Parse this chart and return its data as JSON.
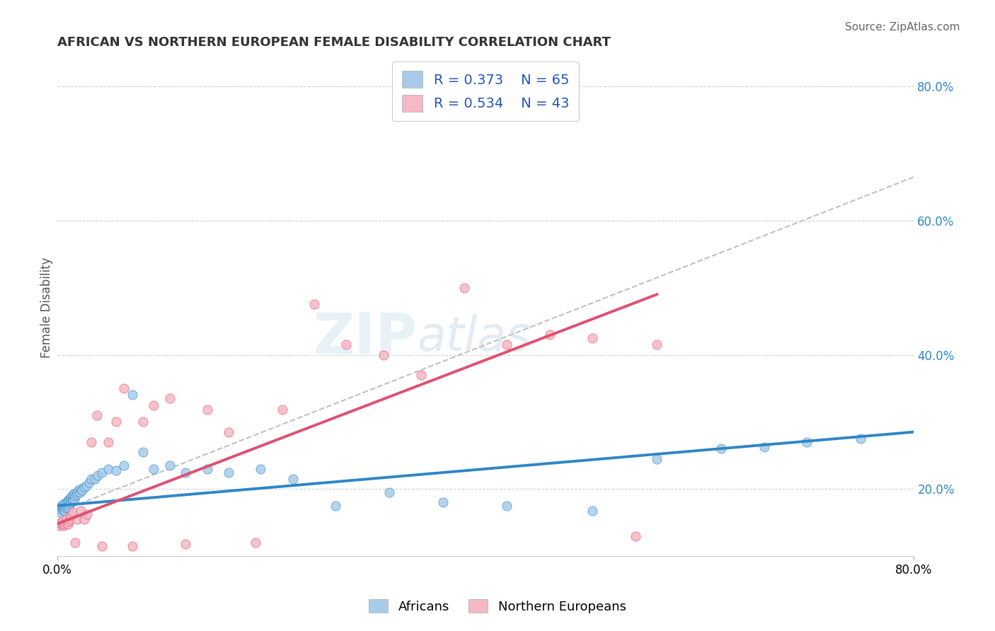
{
  "title": "AFRICAN VS NORTHERN EUROPEAN FEMALE DISABILITY CORRELATION CHART",
  "source": "Source: ZipAtlas.com",
  "ylabel": "Female Disability",
  "legend_labels": [
    "Africans",
    "Northern Europeans"
  ],
  "r_values": [
    0.373,
    0.534
  ],
  "n_values": [
    65,
    43
  ],
  "watermark_part1": "ZIP",
  "watermark_part2": "atlas",
  "xlim": [
    0.0,
    0.8
  ],
  "ylim": [
    0.1,
    0.84
  ],
  "yticks": [
    0.2,
    0.4,
    0.6,
    0.8
  ],
  "ytick_labels": [
    "20.0%",
    "40.0%",
    "60.0%",
    "80.0%"
  ],
  "xtick_labels": [
    "0.0%",
    "80.0%"
  ],
  "african_x": [
    0.002,
    0.003,
    0.004,
    0.004,
    0.005,
    0.005,
    0.006,
    0.006,
    0.007,
    0.007,
    0.008,
    0.008,
    0.009,
    0.009,
    0.01,
    0.01,
    0.01,
    0.011,
    0.011,
    0.012,
    0.012,
    0.013,
    0.013,
    0.014,
    0.014,
    0.015,
    0.015,
    0.016,
    0.016,
    0.017,
    0.018,
    0.019,
    0.02,
    0.021,
    0.022,
    0.023,
    0.025,
    0.027,
    0.03,
    0.032,
    0.035,
    0.038,
    0.042,
    0.048,
    0.055,
    0.062,
    0.07,
    0.08,
    0.09,
    0.105,
    0.12,
    0.14,
    0.16,
    0.19,
    0.22,
    0.26,
    0.31,
    0.36,
    0.42,
    0.5,
    0.56,
    0.62,
    0.66,
    0.7,
    0.75
  ],
  "african_y": [
    0.165,
    0.17,
    0.172,
    0.175,
    0.173,
    0.176,
    0.17,
    0.178,
    0.168,
    0.174,
    0.172,
    0.178,
    0.175,
    0.18,
    0.172,
    0.178,
    0.183,
    0.175,
    0.182,
    0.178,
    0.185,
    0.18,
    0.188,
    0.182,
    0.19,
    0.185,
    0.192,
    0.185,
    0.193,
    0.19,
    0.192,
    0.195,
    0.198,
    0.195,
    0.2,
    0.198,
    0.202,
    0.205,
    0.21,
    0.215,
    0.215,
    0.22,
    0.225,
    0.23,
    0.228,
    0.235,
    0.34,
    0.255,
    0.23,
    0.235,
    0.225,
    0.23,
    0.225,
    0.23,
    0.215,
    0.175,
    0.195,
    0.18,
    0.175,
    0.168,
    0.245,
    0.26,
    0.262,
    0.27,
    0.275
  ],
  "ne_x": [
    0.002,
    0.003,
    0.004,
    0.005,
    0.006,
    0.007,
    0.008,
    0.009,
    0.01,
    0.011,
    0.012,
    0.013,
    0.015,
    0.017,
    0.019,
    0.022,
    0.025,
    0.028,
    0.032,
    0.037,
    0.042,
    0.048,
    0.055,
    0.062,
    0.07,
    0.08,
    0.09,
    0.105,
    0.12,
    0.14,
    0.16,
    0.185,
    0.21,
    0.24,
    0.27,
    0.305,
    0.34,
    0.38,
    0.42,
    0.46,
    0.5,
    0.54,
    0.56
  ],
  "ne_y": [
    0.145,
    0.15,
    0.148,
    0.152,
    0.145,
    0.148,
    0.15,
    0.155,
    0.148,
    0.152,
    0.155,
    0.16,
    0.165,
    0.12,
    0.155,
    0.168,
    0.155,
    0.162,
    0.27,
    0.31,
    0.115,
    0.27,
    0.3,
    0.35,
    0.115,
    0.3,
    0.325,
    0.335,
    0.118,
    0.318,
    0.285,
    0.12,
    0.318,
    0.475,
    0.415,
    0.4,
    0.37,
    0.5,
    0.415,
    0.43,
    0.425,
    0.13,
    0.415
  ],
  "african_line_color": "#2e86c8",
  "ne_line_color": "#e05070",
  "african_dot_color": "#a8cce8",
  "ne_dot_color": "#f5b8c4",
  "dashed_line_color": "#c0c0c0",
  "dashed_line_x0": 0.0,
  "dashed_line_x1": 0.8,
  "dashed_line_y0": 0.165,
  "dashed_line_y1": 0.665,
  "african_trend_x0": 0.0,
  "african_trend_x1": 0.8,
  "african_trend_y0": 0.175,
  "african_trend_y1": 0.285,
  "ne_trend_x0": 0.0,
  "ne_trend_x1": 0.56,
  "ne_trend_y0": 0.148,
  "ne_trend_y1": 0.49,
  "grid_color": "#d0d0d0",
  "title_color": "#333333",
  "source_color": "#666666",
  "legend_text_color": "#2255bb",
  "tick_label_color": "#2e86c8",
  "background_color": "#ffffff"
}
